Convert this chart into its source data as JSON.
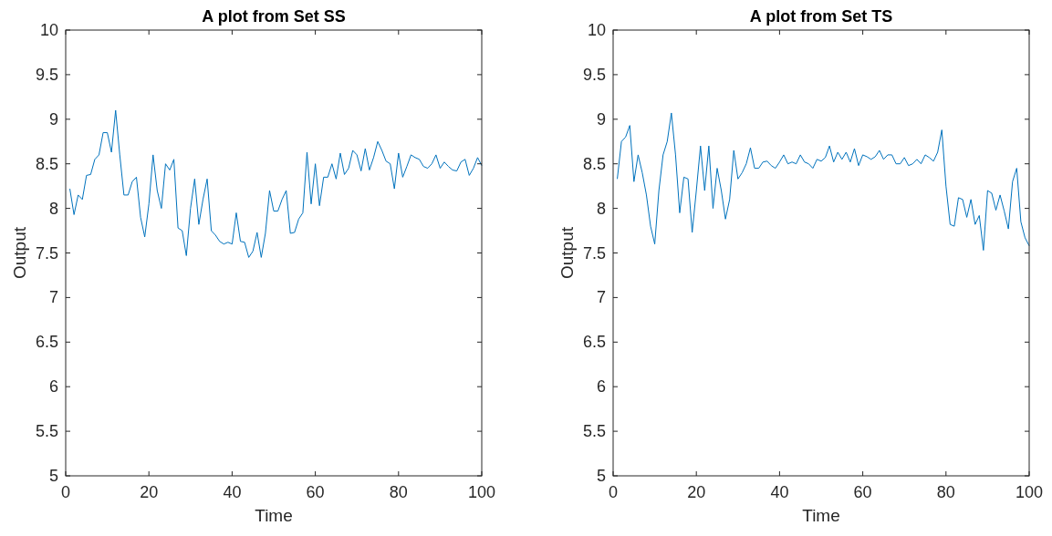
{
  "chart_data": [
    {
      "type": "line",
      "title": "A plot from Set SS",
      "xlabel": "Time",
      "ylabel": "Output",
      "xlim": [
        0,
        100
      ],
      "xticks": [
        0,
        20,
        40,
        60,
        80,
        100
      ],
      "ylim": [
        5,
        10
      ],
      "yticks": [
        5,
        5.5,
        6,
        6.5,
        7,
        7.5,
        8,
        8.5,
        9,
        9.5,
        10
      ],
      "grid": false,
      "x": [
        1,
        2,
        3,
        4,
        5,
        6,
        7,
        8,
        9,
        10,
        11,
        12,
        13,
        14,
        15,
        16,
        17,
        18,
        19,
        20,
        21,
        22,
        23,
        24,
        25,
        26,
        27,
        28,
        29,
        30,
        31,
        32,
        33,
        34,
        35,
        36,
        37,
        38,
        39,
        40,
        41,
        42,
        43,
        44,
        45,
        46,
        47,
        48,
        49,
        50,
        51,
        52,
        53,
        54,
        55,
        56,
        57,
        58,
        59,
        60,
        61,
        62,
        63,
        64,
        65,
        66,
        67,
        68,
        69,
        70,
        71,
        72,
        73,
        74,
        75,
        76,
        77,
        78,
        79,
        80,
        81,
        82,
        83,
        84,
        85,
        86,
        87,
        88,
        89,
        90,
        91,
        92,
        93,
        94,
        95,
        96,
        97,
        98,
        99,
        100
      ],
      "series": [
        {
          "color": "#0072bd",
          "values": [
            8.22,
            7.93,
            8.15,
            8.1,
            8.37,
            8.38,
            8.55,
            8.6,
            8.85,
            8.85,
            8.63,
            9.1,
            8.6,
            8.15,
            8.15,
            8.3,
            8.35,
            7.9,
            7.68,
            8.05,
            8.6,
            8.2,
            8.0,
            8.5,
            8.43,
            8.55,
            7.78,
            7.75,
            7.47,
            8.0,
            8.33,
            7.82,
            8.1,
            8.33,
            7.75,
            7.7,
            7.63,
            7.6,
            7.62,
            7.6,
            7.95,
            7.63,
            7.62,
            7.45,
            7.52,
            7.73,
            7.45,
            7.72,
            8.2,
            7.97,
            7.97,
            8.1,
            8.2,
            7.72,
            7.73,
            7.88,
            7.95,
            8.63,
            8.05,
            8.5,
            8.03,
            8.35,
            8.35,
            8.5,
            8.33,
            8.62,
            8.38,
            8.45,
            8.65,
            8.6,
            8.42,
            8.67,
            8.43,
            8.57,
            8.75,
            8.65,
            8.53,
            8.5,
            8.22,
            8.62,
            8.35,
            8.47,
            8.6,
            8.57,
            8.55,
            8.47,
            8.45,
            8.5,
            8.6,
            8.45,
            8.52,
            8.47,
            8.43,
            8.42,
            8.52,
            8.55,
            8.37,
            8.45,
            8.57,
            8.48
          ]
        }
      ]
    },
    {
      "type": "line",
      "title": "A plot from Set TS",
      "xlabel": "Time",
      "ylabel": "Output",
      "xlim": [
        0,
        100
      ],
      "xticks": [
        0,
        20,
        40,
        60,
        80,
        100
      ],
      "ylim": [
        5,
        10
      ],
      "yticks": [
        5,
        5.5,
        6,
        6.5,
        7,
        7.5,
        8,
        8.5,
        9,
        9.5,
        10
      ],
      "grid": false,
      "x": [
        1,
        2,
        3,
        4,
        5,
        6,
        7,
        8,
        9,
        10,
        11,
        12,
        13,
        14,
        15,
        16,
        17,
        18,
        19,
        20,
        21,
        22,
        23,
        24,
        25,
        26,
        27,
        28,
        29,
        30,
        31,
        32,
        33,
        34,
        35,
        36,
        37,
        38,
        39,
        40,
        41,
        42,
        43,
        44,
        45,
        46,
        47,
        48,
        49,
        50,
        51,
        52,
        53,
        54,
        55,
        56,
        57,
        58,
        59,
        60,
        61,
        62,
        63,
        64,
        65,
        66,
        67,
        68,
        69,
        70,
        71,
        72,
        73,
        74,
        75,
        76,
        77,
        78,
        79,
        80,
        81,
        82,
        83,
        84,
        85,
        86,
        87,
        88,
        89,
        90,
        91,
        92,
        93,
        94,
        95,
        96,
        97,
        98,
        99,
        100
      ],
      "series": [
        {
          "color": "#0072bd",
          "values": [
            8.33,
            8.75,
            8.8,
            8.93,
            8.3,
            8.6,
            8.4,
            8.15,
            7.8,
            7.6,
            8.2,
            8.6,
            8.75,
            9.07,
            8.6,
            7.95,
            8.35,
            8.33,
            7.73,
            8.2,
            8.7,
            8.2,
            8.7,
            8.0,
            8.45,
            8.2,
            7.88,
            8.1,
            8.65,
            8.33,
            8.4,
            8.5,
            8.68,
            8.45,
            8.45,
            8.52,
            8.53,
            8.48,
            8.45,
            8.52,
            8.6,
            8.5,
            8.52,
            8.5,
            8.6,
            8.52,
            8.5,
            8.45,
            8.55,
            8.53,
            8.57,
            8.7,
            8.52,
            8.63,
            8.55,
            8.63,
            8.52,
            8.67,
            8.48,
            8.6,
            8.58,
            8.55,
            8.58,
            8.65,
            8.55,
            8.6,
            8.6,
            8.5,
            8.5,
            8.57,
            8.48,
            8.5,
            8.55,
            8.5,
            8.6,
            8.57,
            8.53,
            8.63,
            8.88,
            8.25,
            7.82,
            7.8,
            8.12,
            8.1,
            7.9,
            8.1,
            7.82,
            7.92,
            7.53,
            8.2,
            8.17,
            7.98,
            8.15,
            7.97,
            7.77,
            8.3,
            8.45,
            7.85,
            7.67,
            7.58
          ]
        }
      ]
    }
  ]
}
